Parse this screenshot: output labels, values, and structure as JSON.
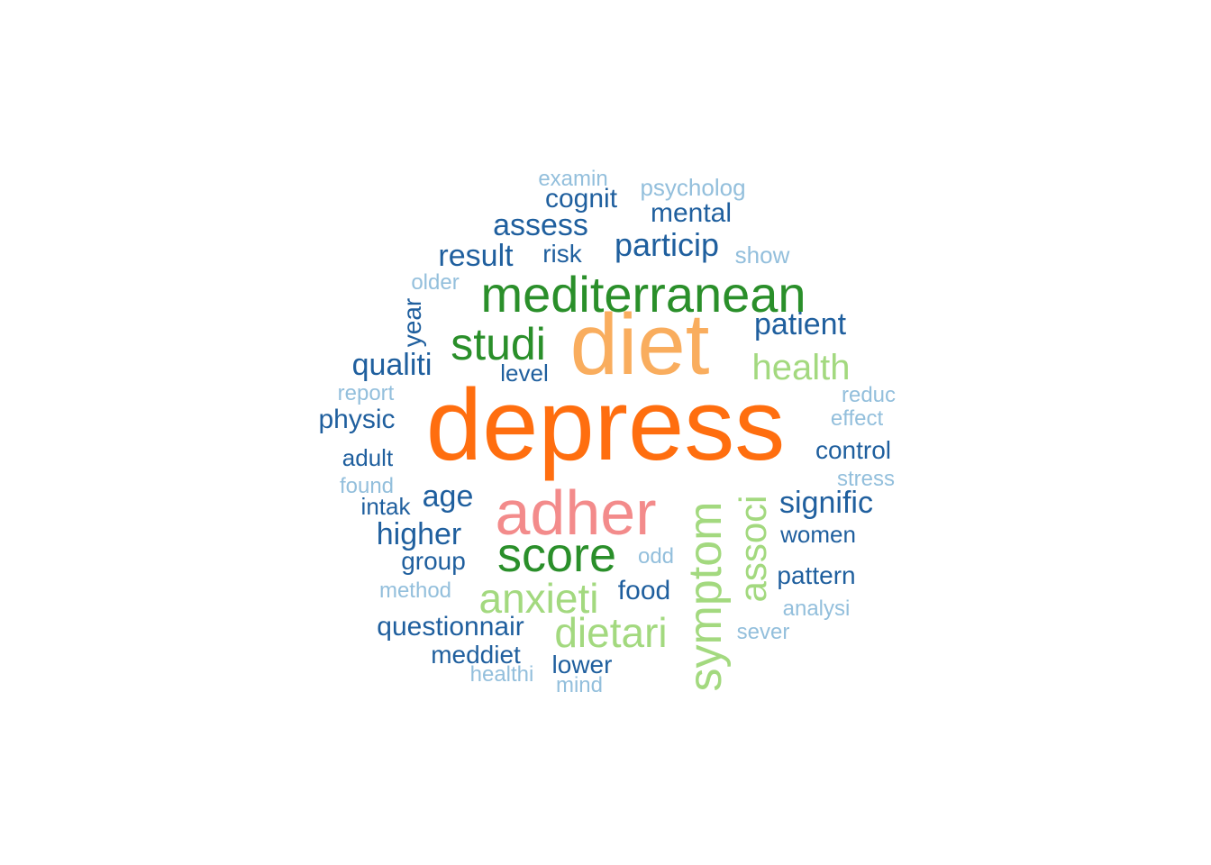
{
  "palette": {
    "dark_orange": "#ff6e0f",
    "light_orange": "#f9ad5e",
    "pink": "#f38b8b",
    "dark_green": "#2a8f2a",
    "light_green": "#a3d97f",
    "dark_blue": "#1f5f9e",
    "light_blue": "#93bfdc"
  },
  "words": [
    {
      "text": "depress",
      "color": "dark_orange"
    },
    {
      "text": "diet",
      "color": "light_orange"
    },
    {
      "text": "adher",
      "color": "pink"
    },
    {
      "text": "mediterranean",
      "color": "dark_green"
    },
    {
      "text": "score",
      "color": "dark_green"
    },
    {
      "text": "studi",
      "color": "dark_green"
    },
    {
      "text": "symptom",
      "color": "light_green"
    },
    {
      "text": "anxieti",
      "color": "light_green"
    },
    {
      "text": "dietari",
      "color": "light_green"
    },
    {
      "text": "associ",
      "color": "light_green"
    },
    {
      "text": "health",
      "color": "light_green"
    },
    {
      "text": "particip",
      "color": "dark_blue"
    },
    {
      "text": "assess",
      "color": "dark_blue"
    },
    {
      "text": "result",
      "color": "dark_blue"
    },
    {
      "text": "patient",
      "color": "dark_blue"
    },
    {
      "text": "signific",
      "color": "dark_blue"
    },
    {
      "text": "qualiti",
      "color": "dark_blue"
    },
    {
      "text": "higher",
      "color": "dark_blue"
    },
    {
      "text": "age",
      "color": "dark_blue"
    },
    {
      "text": "cognit",
      "color": "dark_blue"
    },
    {
      "text": "mental",
      "color": "dark_blue"
    },
    {
      "text": "risk",
      "color": "dark_blue"
    },
    {
      "text": "year",
      "color": "dark_blue"
    },
    {
      "text": "physic",
      "color": "dark_blue"
    },
    {
      "text": "food",
      "color": "dark_blue"
    },
    {
      "text": "group",
      "color": "dark_blue"
    },
    {
      "text": "questionnair",
      "color": "dark_blue"
    },
    {
      "text": "pattern",
      "color": "dark_blue"
    },
    {
      "text": "meddiet",
      "color": "dark_blue"
    },
    {
      "text": "lower",
      "color": "dark_blue"
    },
    {
      "text": "control",
      "color": "dark_blue"
    },
    {
      "text": "adult",
      "color": "dark_blue"
    },
    {
      "text": "women",
      "color": "dark_blue"
    },
    {
      "text": "intak",
      "color": "dark_blue"
    },
    {
      "text": "level",
      "color": "dark_blue"
    },
    {
      "text": "examin",
      "color": "light_blue"
    },
    {
      "text": "psycholog",
      "color": "light_blue"
    },
    {
      "text": "show",
      "color": "light_blue"
    },
    {
      "text": "older",
      "color": "light_blue"
    },
    {
      "text": "report",
      "color": "light_blue"
    },
    {
      "text": "reduc",
      "color": "light_blue"
    },
    {
      "text": "effect",
      "color": "light_blue"
    },
    {
      "text": "stress",
      "color": "light_blue"
    },
    {
      "text": "found",
      "color": "light_blue"
    },
    {
      "text": "odd",
      "color": "light_blue"
    },
    {
      "text": "method",
      "color": "light_blue"
    },
    {
      "text": "analysi",
      "color": "light_blue"
    },
    {
      "text": "sever",
      "color": "light_blue"
    },
    {
      "text": "healthi",
      "color": "light_blue"
    },
    {
      "text": "mind",
      "color": "light_blue"
    }
  ]
}
